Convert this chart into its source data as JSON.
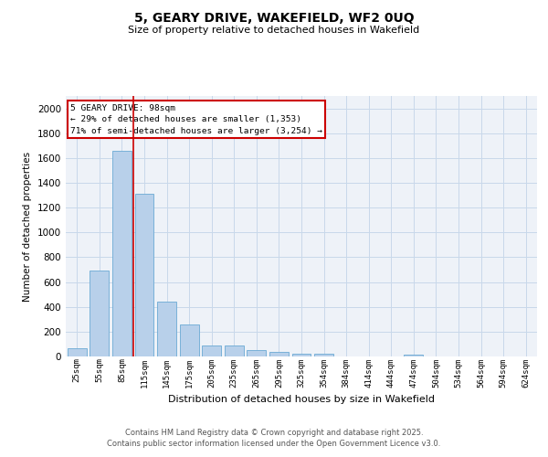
{
  "title": "5, GEARY DRIVE, WAKEFIELD, WF2 0UQ",
  "subtitle": "Size of property relative to detached houses in Wakefield",
  "xlabel": "Distribution of detached houses by size in Wakefield",
  "ylabel": "Number of detached properties",
  "categories": [
    "25sqm",
    "55sqm",
    "85sqm",
    "115sqm",
    "145sqm",
    "175sqm",
    "205sqm",
    "235sqm",
    "265sqm",
    "295sqm",
    "325sqm",
    "354sqm",
    "384sqm",
    "414sqm",
    "444sqm",
    "474sqm",
    "504sqm",
    "534sqm",
    "564sqm",
    "594sqm",
    "624sqm"
  ],
  "values": [
    65,
    695,
    1660,
    1310,
    445,
    255,
    90,
    90,
    50,
    35,
    25,
    20,
    0,
    0,
    0,
    15,
    0,
    0,
    0,
    0,
    0
  ],
  "bar_color": "#b8d0ea",
  "bar_edge_color": "#6aaad4",
  "grid_color": "#c8d8ea",
  "background_color": "#eef2f8",
  "vline_color": "#cc0000",
  "vline_pos": 2.5,
  "annotation_line1": "5 GEARY DRIVE: 98sqm",
  "annotation_line2": "← 29% of detached houses are smaller (1,353)",
  "annotation_line3": "71% of semi-detached houses are larger (3,254) →",
  "annotation_box_color": "#cc0000",
  "ylim": [
    0,
    2100
  ],
  "yticks": [
    0,
    200,
    400,
    600,
    800,
    1000,
    1200,
    1400,
    1600,
    1800,
    2000
  ],
  "footer_line1": "Contains HM Land Registry data © Crown copyright and database right 2025.",
  "footer_line2": "Contains public sector information licensed under the Open Government Licence v3.0."
}
